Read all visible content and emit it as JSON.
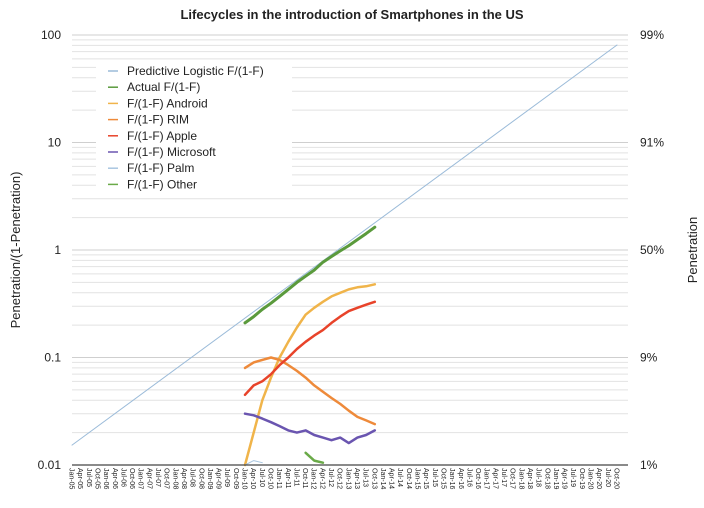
{
  "chart_data": {
    "type": "line",
    "title": "Lifecycles in the introduction of Smartphones in the US",
    "ylabel": "Penetration/(1-Penetration)",
    "ylabel_right": "Penetration",
    "yscale": "log",
    "ylim": [
      0.01,
      100
    ],
    "y_ticks": [
      "100",
      "10",
      "1",
      "0.1",
      "0.01"
    ],
    "y_tick_values": [
      100,
      10,
      1,
      0.1,
      0.01
    ],
    "y_right_ticks": [
      "99%",
      "91%",
      "50%",
      "9%",
      "1%"
    ],
    "grid": true,
    "legend_position": "top-left",
    "x_ticks": [
      "Jan-05",
      "Apr-05",
      "Jul-05",
      "Oct-05",
      "Jan-06",
      "Apr-06",
      "Jul-06",
      "Oct-06",
      "Jan-07",
      "Apr-07",
      "Jul-07",
      "Oct-07",
      "Jan-08",
      "Apr-08",
      "Jul-08",
      "Oct-08",
      "Jan-09",
      "Apr-09",
      "Jul-09",
      "Oct-09",
      "Jan-10",
      "Apr-10",
      "Jul-10",
      "Oct-10",
      "Jan-11",
      "Apr-11",
      "Jul-11",
      "Oct-11",
      "Jan-12",
      "Apr-12",
      "Jul-12",
      "Oct-12",
      "Jan-13",
      "Apr-13",
      "Jul-13",
      "Oct-13",
      "Jan-14",
      "Apr-14",
      "Jul-14",
      "Oct-14",
      "Jan-15",
      "Apr-15",
      "Jul-15",
      "Oct-15",
      "Jan-16",
      "Apr-16",
      "Jul-16",
      "Oct-16",
      "Jan-17",
      "Apr-17",
      "Jul-17",
      "Oct-17",
      "Jan-18",
      "Apr-18",
      "Jul-18",
      "Oct-18",
      "Jan-19",
      "Apr-19",
      "Jul-19",
      "Oct-19",
      "Jan-20",
      "Apr-20",
      "Jul-20",
      "Oct-20"
    ],
    "series": [
      {
        "name": "Predictive Logistic F/(1-F)",
        "color": "#9bbbd9",
        "width": 1,
        "x": [
          "Jan-05",
          "Oct-20"
        ],
        "values": [
          0.0153,
          80.7
        ]
      },
      {
        "name": "Actual F/(1-F)",
        "color": "#5a9a3c",
        "width": 3,
        "x": [
          "Jan-10",
          "Apr-10",
          "Jul-10",
          "Oct-10",
          "Jan-11",
          "Apr-11",
          "Jul-11",
          "Oct-11",
          "Jan-12",
          "Apr-12",
          "Jul-12",
          "Oct-12",
          "Jan-13",
          "Apr-13",
          "Jul-13",
          "Oct-13"
        ],
        "values": [
          0.21,
          0.24,
          0.28,
          0.32,
          0.37,
          0.43,
          0.5,
          0.57,
          0.65,
          0.77,
          0.87,
          0.98,
          1.1,
          1.25,
          1.42,
          1.63
        ]
      },
      {
        "name": "F/(1-F) Android",
        "color": "#f0b44a",
        "width": 2.5,
        "x": [
          "Jan-10",
          "Apr-10",
          "Jul-10",
          "Oct-10",
          "Jan-11",
          "Apr-11",
          "Jul-11",
          "Oct-11",
          "Jan-12",
          "Apr-12",
          "Jul-12",
          "Oct-12",
          "Jan-13",
          "Apr-13",
          "Jul-13",
          "Oct-13"
        ],
        "values": [
          0.01,
          0.02,
          0.04,
          0.065,
          0.1,
          0.14,
          0.19,
          0.25,
          0.29,
          0.33,
          0.37,
          0.4,
          0.43,
          0.45,
          0.46,
          0.48
        ]
      },
      {
        "name": "F/(1-F) RIM",
        "color": "#ee8a3a",
        "width": 2.5,
        "x": [
          "Jan-10",
          "Apr-10",
          "Jul-10",
          "Oct-10",
          "Jan-11",
          "Apr-11",
          "Jul-11",
          "Oct-11",
          "Jan-12",
          "Apr-12",
          "Jul-12",
          "Oct-12",
          "Jan-13",
          "Apr-13",
          "Jul-13",
          "Oct-13"
        ],
        "values": [
          0.08,
          0.09,
          0.095,
          0.1,
          0.095,
          0.085,
          0.075,
          0.065,
          0.055,
          0.048,
          0.042,
          0.037,
          0.032,
          0.028,
          0.026,
          0.024
        ]
      },
      {
        "name": "F/(1-F) Apple",
        "color": "#e8432a",
        "width": 2.5,
        "x": [
          "Jan-10",
          "Apr-10",
          "Jul-10",
          "Oct-10",
          "Jan-11",
          "Apr-11",
          "Jul-11",
          "Oct-11",
          "Jan-12",
          "Apr-12",
          "Jul-12",
          "Oct-12",
          "Jan-13",
          "Apr-13",
          "Jul-13",
          "Oct-13"
        ],
        "values": [
          0.045,
          0.055,
          0.06,
          0.07,
          0.085,
          0.1,
          0.12,
          0.14,
          0.16,
          0.18,
          0.21,
          0.24,
          0.27,
          0.29,
          0.31,
          0.33
        ]
      },
      {
        "name": "F/(1-F) Microsoft",
        "color": "#6a55b0",
        "width": 2.5,
        "x": [
          "Jan-10",
          "Apr-10",
          "Jul-10",
          "Oct-10",
          "Jan-11",
          "Apr-11",
          "Jul-11",
          "Oct-11",
          "Jan-12",
          "Apr-12",
          "Jul-12",
          "Oct-12",
          "Jan-13",
          "Apr-13",
          "Jul-13",
          "Oct-13"
        ],
        "values": [
          0.03,
          0.029,
          0.027,
          0.025,
          0.023,
          0.021,
          0.02,
          0.021,
          0.019,
          0.018,
          0.017,
          0.018,
          0.016,
          0.018,
          0.019,
          0.021
        ]
      },
      {
        "name": "F/(1-F) Palm",
        "color": "#a9c6e0",
        "width": 1,
        "x": [
          "Jan-10",
          "Apr-10",
          "Jul-10"
        ],
        "values": [
          0.01,
          0.011,
          0.0105
        ]
      },
      {
        "name": "F/(1-F) Other",
        "color": "#6aaa48",
        "width": 2.5,
        "x": [
          "Oct-11",
          "Jan-12",
          "Apr-12"
        ],
        "values": [
          0.013,
          0.011,
          0.0105
        ]
      }
    ]
  }
}
